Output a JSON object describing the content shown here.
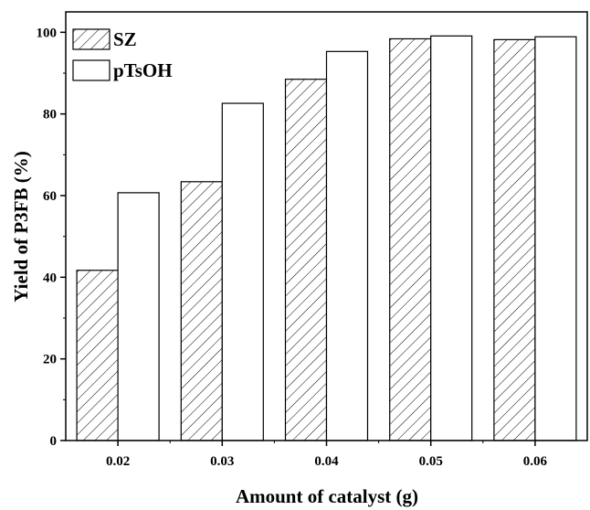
{
  "chart_data": {
    "type": "bar",
    "xlabel": "Amount of catalyst (g)",
    "ylabel": "Yield of P3FB (%)",
    "categories": [
      "0.02",
      "0.03",
      "0.04",
      "0.05",
      "0.06"
    ],
    "ylim": [
      0,
      105
    ],
    "yticks": [
      0,
      20,
      40,
      60,
      80,
      100
    ],
    "grid": false,
    "legend_position": "top-left",
    "series": [
      {
        "name": "SZ",
        "values": [
          41.7,
          63.4,
          88.5,
          98.4,
          98.2
        ],
        "fill": "hatched",
        "color": "#000000"
      },
      {
        "name": "pTsOH",
        "values": [
          60.7,
          82.6,
          95.3,
          99.1,
          98.9
        ],
        "fill": "white",
        "color": "#000000"
      }
    ]
  }
}
